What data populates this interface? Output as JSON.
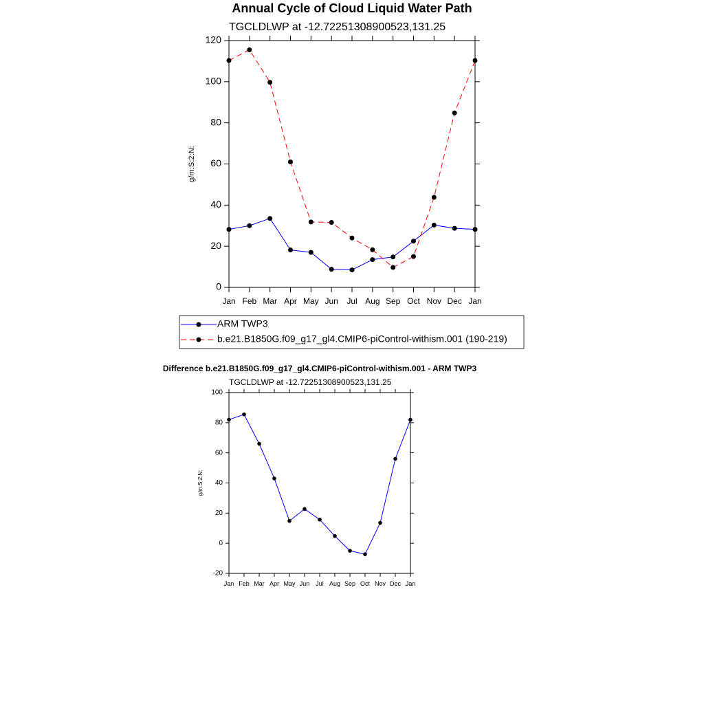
{
  "chart_data": [
    {
      "type": "line",
      "title": "Annual Cycle of Cloud Liquid Water Path",
      "subtitle": "TGCLDLWP at -12.72251308900523,131.25",
      "y_label": "g/m:S:2:N:",
      "categories": [
        "Jan",
        "Feb",
        "Mar",
        "Apr",
        "May",
        "Jun",
        "Jul",
        "Aug",
        "Sep",
        "Oct",
        "Nov",
        "Dec",
        "Jan"
      ],
      "ylim": [
        0,
        120
      ],
      "yticks": [
        0,
        20,
        40,
        60,
        80,
        100,
        120
      ],
      "legend": "bottom",
      "series": [
        {
          "name": "ARM TWP3",
          "color": "#0000ff",
          "dash": "solid",
          "values": [
            28.2,
            30,
            33.5,
            18.2,
            17,
            8.8,
            8.5,
            13.5,
            14.8,
            22.5,
            30.3,
            28.7,
            28.2
          ]
        },
        {
          "name": "b.e21.B1850G.f09_g17_gl4.CMIP6-piControl-withism.001 (190-219)",
          "color": "#ff0000",
          "dash": "dashed",
          "values": [
            110.3,
            115.5,
            99.7,
            61,
            31.8,
            31.6,
            24,
            18.3,
            9.7,
            15,
            43.8,
            84.8,
            110.3
          ]
        }
      ]
    },
    {
      "type": "line",
      "title": "Difference b.e21.B1850G.f09_g17_gl4.CMIP6-piControl-withism.001 - ARM TWP3",
      "subtitle": "TGCLDLWP at -12.72251308900523,131.25",
      "y_label": "g/m:S:2:N:",
      "categories": [
        "Jan",
        "Feb",
        "Mar",
        "Apr",
        "May",
        "Jun",
        "Jul",
        "Aug",
        "Sep",
        "Oct",
        "Nov",
        "Dec",
        "Jan"
      ],
      "ylim": [
        -20,
        100
      ],
      "yticks": [
        -20,
        0,
        20,
        40,
        60,
        80,
        100
      ],
      "series": [
        {
          "color": "#0000ff",
          "dash": "solid",
          "values": [
            82,
            85.5,
            66,
            43,
            14.8,
            22.7,
            15.7,
            4.8,
            -5,
            -7.3,
            13.5,
            56,
            82
          ]
        }
      ]
    }
  ]
}
